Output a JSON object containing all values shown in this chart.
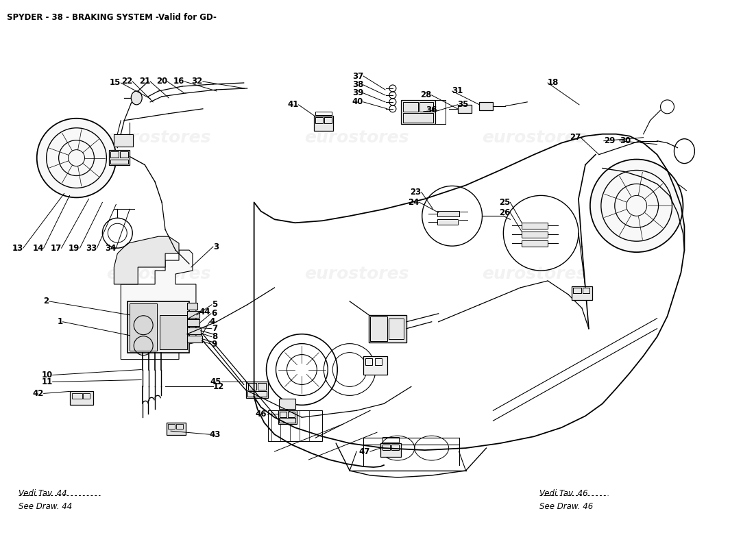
{
  "title": "SPYDER - 38 - BRAKING SYSTEM -Valid for GD-",
  "title_fontsize": 8.5,
  "background_color": "#ffffff",
  "text_color": "#000000",
  "line_color": "#000000",
  "watermark_color": "#cccccc",
  "watermark_alpha": 0.25,
  "vedi_tav_44": "Vedi Tav. 44\nSee Draw. 44",
  "vedi_tav_46": "Vedi Tav. 46\nSee Draw. 46",
  "label_fontsize": 8,
  "label_bold_fontsize": 9
}
